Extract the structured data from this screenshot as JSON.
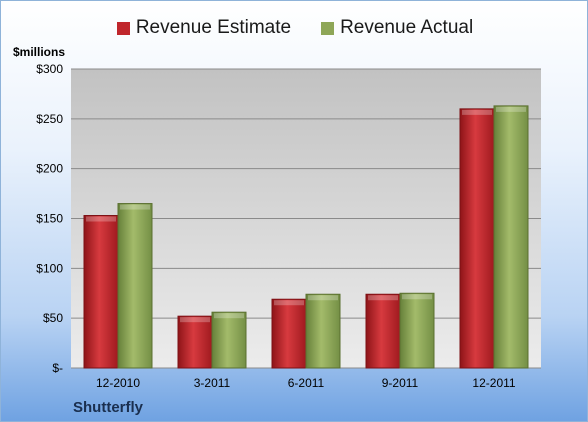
{
  "company": "Shutterfly",
  "unit_label": "$millions",
  "colors": {
    "estimate": "#c0262c",
    "actual": "#8ea657",
    "plot_top": "#bdbdbd",
    "plot_bottom": "#e9e9e9"
  },
  "chart_data": {
    "type": "bar",
    "categories": [
      "12-2010",
      "3-2011",
      "6-2011",
      "9-2011",
      "12-2011"
    ],
    "series": [
      {
        "name": "Revenue Estimate",
        "values": [
          153,
          52,
          69,
          74,
          260
        ]
      },
      {
        "name": "Revenue Actual",
        "values": [
          165,
          56,
          74,
          75,
          263
        ]
      }
    ],
    "ylim": [
      0,
      300
    ],
    "yticks": [
      0,
      50,
      100,
      150,
      200,
      250,
      300
    ],
    "ytick_labels": [
      "$-",
      "$50",
      "$100",
      "$150",
      "$200",
      "$250",
      "$300"
    ],
    "grid": true,
    "legend": "top"
  }
}
